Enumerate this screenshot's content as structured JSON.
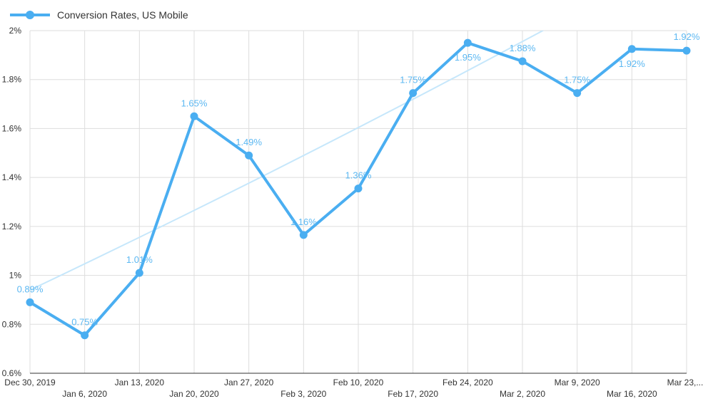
{
  "chart_data": {
    "type": "line",
    "categories": [
      "Dec 30, 2019",
      "Jan 6, 2020",
      "Jan 13, 2020",
      "Jan 20, 2020",
      "Jan 27, 2020",
      "Feb 3, 2020",
      "Feb 10, 2020",
      "Feb 17, 2020",
      "Feb 24, 2020",
      "Mar 2, 2020",
      "Mar 9, 2020",
      "Mar 16, 2020",
      "Mar 23,..."
    ],
    "series": [
      {
        "name": "Conversion Rates, US Mobile",
        "values": [
          0.89,
          0.755,
          1.01,
          1.65,
          1.49,
          1.165,
          1.355,
          1.745,
          1.95,
          1.875,
          1.745,
          1.925,
          1.918
        ],
        "value_labels": [
          "0.89%",
          "0.75%",
          "1.01%",
          "1.65%",
          "1.49%",
          "1.16%",
          "1.36%",
          "1.75%",
          "1.95%",
          "1.88%",
          "1.75%",
          "1.92%",
          "1.92%"
        ]
      }
    ],
    "trendline": {
      "start": 0.94,
      "end": 2.32,
      "color": "#c6e7fb"
    },
    "ylim": [
      0.6,
      2.0
    ],
    "yticks": [
      0.6,
      0.8,
      1.0,
      1.2,
      1.4,
      1.6,
      1.8,
      2.0
    ],
    "ytick_labels": [
      "0.6%",
      "0.8%",
      "1%",
      "1.2%",
      "1.4%",
      "1.6%",
      "1.8%",
      "2%"
    ],
    "grid": true,
    "legend_position": "top-left",
    "colors": {
      "series": "#4aaef1",
      "label": "#5cb8f2",
      "grid": "#dddddd",
      "axis": "#333333"
    }
  }
}
